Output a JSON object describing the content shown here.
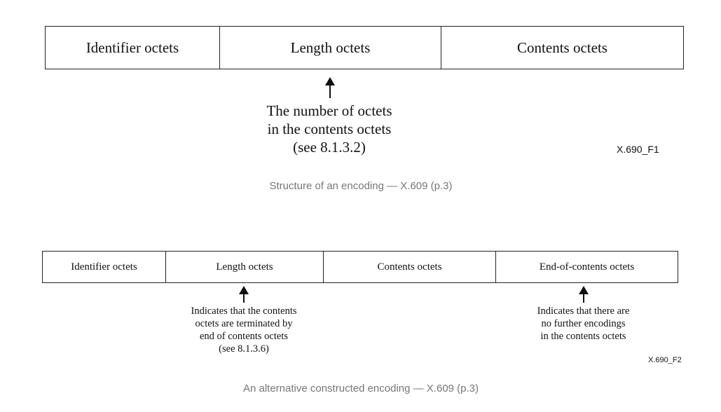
{
  "figure1": {
    "cells": [
      "Identifier octets",
      "Length octets",
      "Contents octets"
    ],
    "note_lines": [
      "The number of octets",
      "in the contents octets",
      "(see 8.1.3.2)"
    ],
    "figure_id": "X.690_F1",
    "caption": "Structure of an encoding — X.609 (p.3)"
  },
  "figure2": {
    "cells": [
      "Identifier octets",
      "Length octets",
      "Contents octets",
      "End-of-contents octets"
    ],
    "note_length_lines": [
      "Indicates that the contents",
      "octets are terminated by",
      "end of contents octets",
      "(see 8.1.3.6)"
    ],
    "note_eoc_lines": [
      "Indicates that there are",
      "no further encodings",
      "in the contents octets"
    ],
    "figure_id": "X.690_F2",
    "caption": "An alternative constructed encoding — X.609 (p.3)"
  }
}
